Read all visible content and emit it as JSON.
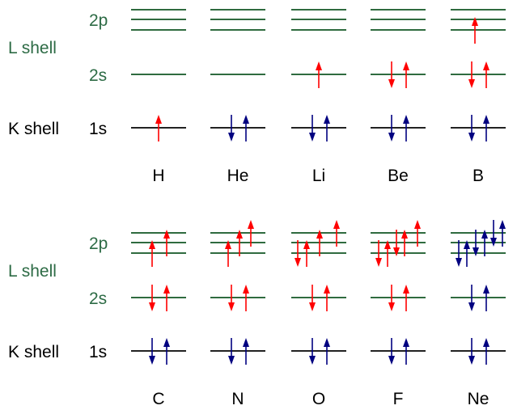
{
  "colors": {
    "valence": "#ff0000",
    "core": "#000080",
    "l_shell": "#2d6b45",
    "k_shell": "#000000",
    "l_line": "#2f6b3f",
    "k_line": "#222222"
  },
  "rows": [
    {
      "labels": {
        "l_shell": "L shell",
        "k_shell": "K shell",
        "2p": "2p",
        "2s": "2s",
        "1s": "1s"
      },
      "elements": [
        {
          "symbol": "H",
          "1s": {
            "spins": [
              "u"
            ],
            "valence": true
          },
          "2s": {
            "spins": [],
            "valence": true
          },
          "2p": {
            "spins": [],
            "valence": true
          }
        },
        {
          "symbol": "He",
          "1s": {
            "spins": [
              "d",
              "u"
            ],
            "valence": false
          },
          "2s": {
            "spins": [],
            "valence": true
          },
          "2p": {
            "spins": [],
            "valence": true
          }
        },
        {
          "symbol": "Li",
          "1s": {
            "spins": [
              "d",
              "u"
            ],
            "valence": false
          },
          "2s": {
            "spins": [
              "u"
            ],
            "valence": true
          },
          "2p": {
            "spins": [],
            "valence": true
          }
        },
        {
          "symbol": "Be",
          "1s": {
            "spins": [
              "d",
              "u"
            ],
            "valence": false
          },
          "2s": {
            "spins": [
              "d",
              "u"
            ],
            "valence": true
          },
          "2p": {
            "spins": [],
            "valence": true
          }
        },
        {
          "symbol": "B",
          "1s": {
            "spins": [
              "d",
              "u"
            ],
            "valence": false
          },
          "2s": {
            "spins": [
              "d",
              "u"
            ],
            "valence": true
          },
          "2p": {
            "spins": [
              "u"
            ],
            "valence": true
          }
        }
      ]
    },
    {
      "labels": {
        "l_shell": "L shell",
        "k_shell": "K shell",
        "2p": "2p",
        "2s": "2s",
        "1s": "1s"
      },
      "elements": [
        {
          "symbol": "C",
          "1s": {
            "spins": [
              "d",
              "u"
            ],
            "valence": false
          },
          "2s": {
            "spins": [
              "d",
              "u"
            ],
            "valence": true
          },
          "2p": {
            "spins": [
              "u",
              "u"
            ],
            "valence": true
          }
        },
        {
          "symbol": "N",
          "1s": {
            "spins": [
              "d",
              "u"
            ],
            "valence": false
          },
          "2s": {
            "spins": [
              "d",
              "u"
            ],
            "valence": true
          },
          "2p": {
            "spins": [
              "u",
              "u",
              "u"
            ],
            "valence": true
          }
        },
        {
          "symbol": "O",
          "1s": {
            "spins": [
              "d",
              "u"
            ],
            "valence": false
          },
          "2s": {
            "spins": [
              "d",
              "u"
            ],
            "valence": true
          },
          "2p": {
            "spins": [
              "d",
              "u",
              "u",
              "u"
            ],
            "valence": true
          }
        },
        {
          "symbol": "F",
          "1s": {
            "spins": [
              "d",
              "u"
            ],
            "valence": false
          },
          "2s": {
            "spins": [
              "d",
              "u"
            ],
            "valence": true
          },
          "2p": {
            "spins": [
              "d",
              "u",
              "d",
              "u",
              "u"
            ],
            "valence": true
          }
        },
        {
          "symbol": "Ne",
          "1s": {
            "spins": [
              "d",
              "u"
            ],
            "valence": false
          },
          "2s": {
            "spins": [
              "d",
              "u"
            ],
            "valence": false
          },
          "2p": {
            "spins": [
              "d",
              "u",
              "d",
              "u",
              "d",
              "u"
            ],
            "valence": false
          }
        }
      ]
    }
  ]
}
